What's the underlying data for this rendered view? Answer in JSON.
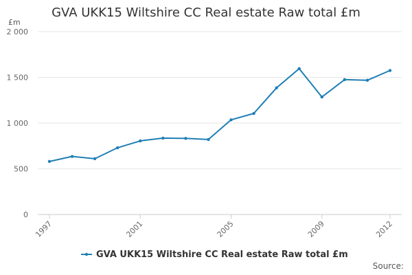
{
  "chart_data": {
    "type": "line",
    "title": "GVA UKK15 Wiltshire CC Real estate Raw total £m",
    "ylabel": "£m",
    "xlabel": "",
    "source_label": "Source:",
    "ylim": [
      0,
      2000
    ],
    "xlim": [
      1997,
      2012
    ],
    "y_ticks": [
      0,
      500,
      1000,
      1500,
      2000
    ],
    "y_tick_labels": [
      "0",
      "500",
      "1 000",
      "1 500",
      "2 000"
    ],
    "x_ticks": [
      1997,
      2001,
      2005,
      2009,
      2012
    ],
    "x_tick_labels": [
      "1997",
      "2001",
      "2005",
      "2009",
      "2012"
    ],
    "grid": "horizontal",
    "legend_position": "bottom",
    "series": [
      {
        "name": "GVA UKK15 Wiltshire CC Real estate Raw total £m",
        "color": "#1f7fb5",
        "x": [
          1997,
          1998,
          1999,
          2000,
          2001,
          2002,
          2003,
          2004,
          2005,
          2006,
          2007,
          2008,
          2009,
          2010,
          2011,
          2012
        ],
        "values": [
          580,
          635,
          610,
          730,
          805,
          835,
          832,
          820,
          1035,
          1105,
          1385,
          1595,
          1285,
          1475,
          1468,
          1575
        ]
      }
    ]
  }
}
